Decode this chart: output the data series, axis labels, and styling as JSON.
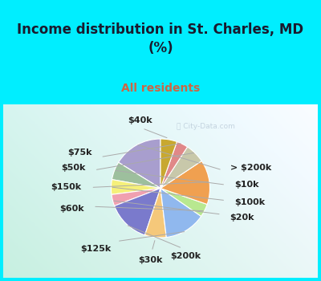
{
  "title": "Income distribution in St. Charles, MD\n(%)",
  "subtitle": "All residents",
  "title_color": "#1a1a2e",
  "subtitle_color": "#cc6644",
  "background_cyan": "#00eeff",
  "watermark": "ⓘ City-Data.com",
  "labels": [
    "> $200k",
    "$10k",
    "$100k",
    "$20k",
    "$200k",
    "$30k",
    "$125k",
    "$60k",
    "$150k",
    "$50k",
    "$75k",
    "$40k"
  ],
  "values": [
    15.0,
    5.5,
    4.5,
    3.5,
    13.0,
    6.5,
    12.5,
    4.0,
    13.5,
    6.0,
    3.5,
    5.0
  ],
  "colors": [
    "#a89ece",
    "#9dbf9d",
    "#f5f07a",
    "#f0a0b0",
    "#7a7acc",
    "#f5c87a",
    "#90b8ee",
    "#b8e890",
    "#f0a050",
    "#c8c8aa",
    "#e08888",
    "#c8a830"
  ],
  "startangle": 90,
  "label_fontsize": 8,
  "figsize": [
    4.0,
    3.5
  ],
  "dpi": 100,
  "title_fontsize": 12,
  "subtitle_fontsize": 10
}
